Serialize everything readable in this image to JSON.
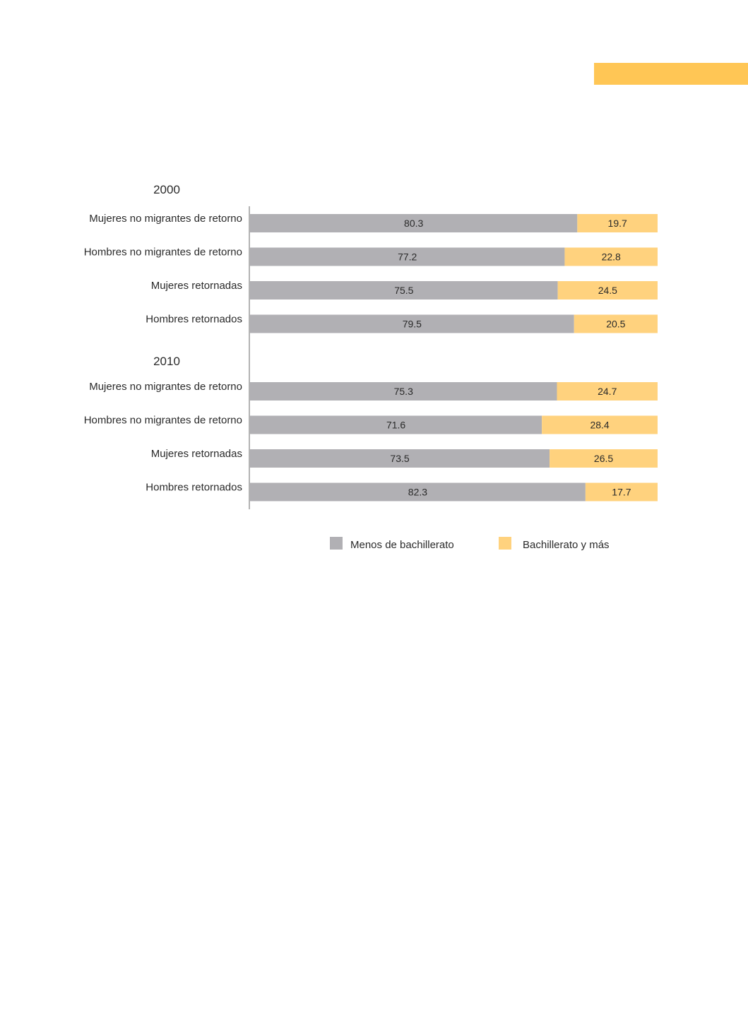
{
  "colors": {
    "accent": "#FFC655",
    "menos": "#B1B0B4",
    "bach": "#FFD27E",
    "axis": "#9A9A9A"
  },
  "chart_data": {
    "type": "bar",
    "orientation": "horizontal",
    "stacked": true,
    "title": "",
    "xlabel": "",
    "ylabel": "",
    "xlim": [
      0,
      100
    ],
    "legend": "bottom",
    "series_names": [
      "Menos de bachillerato",
      "Bachillerato y más"
    ],
    "groups": [
      {
        "label": "2000",
        "rows": [
          {
            "label": "Mujeres no migrantes de retorno",
            "values": [
              80.3,
              19.7
            ]
          },
          {
            "label": "Hombres no migrantes de retorno",
            "values": [
              77.2,
              22.8
            ]
          },
          {
            "label": "Mujeres retornadas",
            "values": [
              75.5,
              24.5
            ]
          },
          {
            "label": "Hombres retornados",
            "values": [
              79.5,
              20.5
            ]
          }
        ]
      },
      {
        "label": "2010",
        "rows": [
          {
            "label": "Mujeres no migrantes de retorno",
            "values": [
              75.3,
              24.7
            ]
          },
          {
            "label": "Hombres no migrantes de retorno",
            "values": [
              71.6,
              28.4
            ]
          },
          {
            "label": "Mujeres retornadas",
            "values": [
              73.5,
              26.5
            ]
          },
          {
            "label": "Hombres retornados",
            "values": [
              82.3,
              17.7
            ]
          }
        ]
      }
    ]
  }
}
